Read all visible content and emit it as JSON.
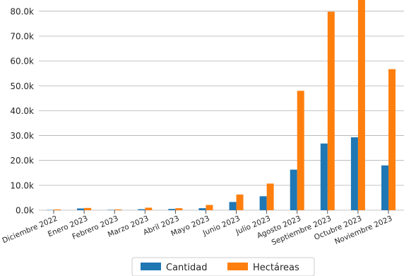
{
  "chart_data": {
    "type": "bar",
    "categories": [
      "Diciembre 2022",
      "Enero 2023",
      "Febrero 2023",
      "Marzo 2023",
      "Abril 2023",
      "Mayo 2023",
      "Junio 2023",
      "Julio 2023",
      "Agosto 2023",
      "Septiembre 2023",
      "Octubre 2023",
      "Noviembre 2023"
    ],
    "series": [
      {
        "name": "Cantidad",
        "color": "#1f77b4",
        "values": [
          100,
          700,
          150,
          400,
          500,
          800,
          3300,
          5600,
          16300,
          26800,
          29300,
          18000
        ]
      },
      {
        "name": "Hectáreas",
        "color": "#ff7f0e",
        "values": [
          300,
          900,
          300,
          1000,
          800,
          2100,
          6300,
          10700,
          48000,
          79800,
          84500,
          56700
        ]
      }
    ],
    "y_ticks": [
      0,
      10000,
      20000,
      30000,
      40000,
      50000,
      60000,
      70000,
      80000
    ],
    "y_tick_labels": [
      "0.0k",
      "10.0k",
      "20.0k",
      "30.0k",
      "40.0k",
      "50.0k",
      "60.0k",
      "70.0k",
      "80.0k"
    ],
    "ylim": [
      0,
      84500
    ],
    "grid": "horizontal",
    "legend_position": "bottom-center",
    "title": "",
    "xlabel": "",
    "ylabel": ""
  }
}
